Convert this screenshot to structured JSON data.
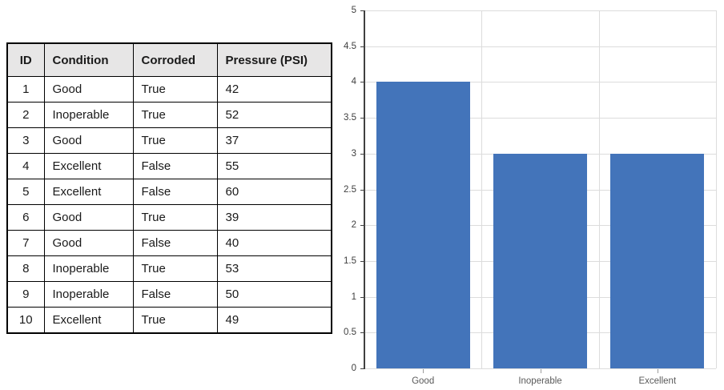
{
  "table": {
    "headers": [
      "ID",
      "Condition",
      "Corroded",
      "Pressure (PSI)"
    ],
    "rows": [
      [
        "1",
        "Good",
        "True",
        "42"
      ],
      [
        "2",
        "Inoperable",
        "True",
        "52"
      ],
      [
        "3",
        "Good",
        "True",
        "37"
      ],
      [
        "4",
        "Excellent",
        "False",
        "55"
      ],
      [
        "5",
        "Excellent",
        "False",
        "60"
      ],
      [
        "6",
        "Good",
        "True",
        "39"
      ],
      [
        "7",
        "Good",
        "False",
        "40"
      ],
      [
        "8",
        "Inoperable",
        "True",
        "53"
      ],
      [
        "9",
        "Inoperable",
        "False",
        "50"
      ],
      [
        "10",
        "Excellent",
        "True",
        "49"
      ]
    ],
    "header_bg": "#E7E6E6",
    "border_color": "#000000"
  },
  "chart_data": {
    "type": "bar",
    "title": "",
    "xlabel": "",
    "ylabel": "",
    "categories": [
      "Good",
      "Inoperable",
      "Excellent"
    ],
    "values": [
      4,
      3,
      3
    ],
    "ylim": [
      0,
      5
    ],
    "ytick_step": 0.5,
    "ytick_labels": [
      "0",
      "0.5",
      "1",
      "1.5",
      "2",
      "2.5",
      "3",
      "3.5",
      "4",
      "4.5",
      "5"
    ],
    "grid": true,
    "legend_position": "none",
    "bar_color": "#4374BA",
    "gridline_color": "#DCDCDC",
    "axis_color": "#404040",
    "ytick_label_color": "#404040",
    "xtick_label_color": "#595959"
  }
}
